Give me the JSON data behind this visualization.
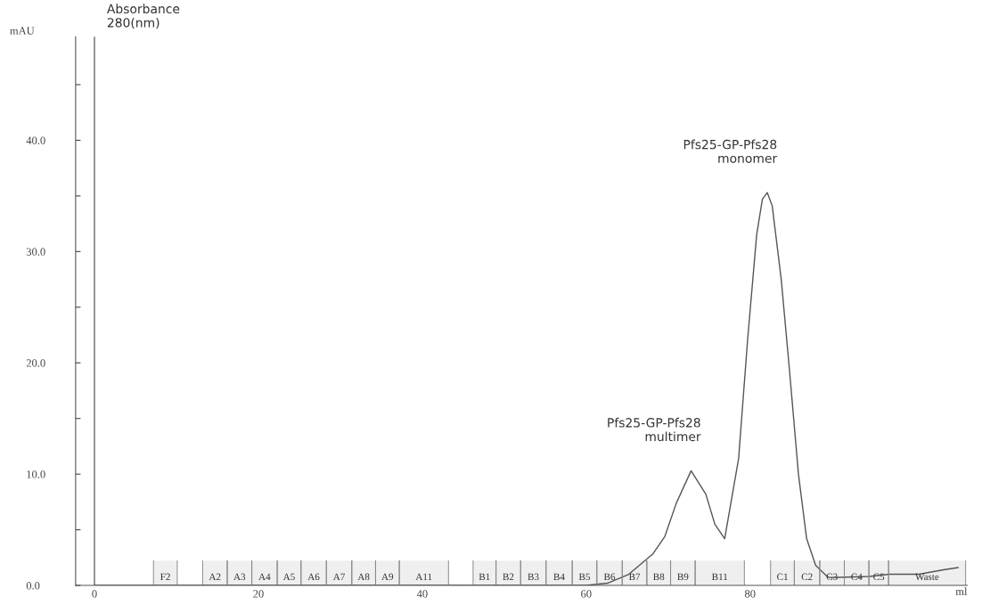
{
  "chart_data": {
    "type": "line",
    "xlabel": "ml",
    "ylabel": "mAU",
    "x": [
      0,
      30,
      60,
      62.6,
      65.2,
      68.1,
      69.6,
      71.0,
      72.8,
      74.6,
      75.7,
      76.9,
      78.6,
      79.7,
      80.8,
      81.5,
      82.1,
      82.7,
      83.8,
      84.8,
      85.9,
      86.9,
      88.0,
      89.4,
      89.8,
      94.5,
      97.0,
      100.6,
      103.6,
      105.4
    ],
    "series": [
      {
        "color": "#555555",
        "values": [
          0,
          0,
          0,
          0.2,
          1.0,
          2.8,
          4.4,
          7.4,
          10.3,
          8.2,
          5.5,
          4.2,
          11.4,
          22.1,
          31.5,
          34.7,
          35.3,
          34.1,
          27.5,
          19.4,
          10.0,
          4.2,
          1.8,
          0.8,
          0.7,
          0.8,
          1.0,
          1.0,
          1.4,
          1.6
        ]
      }
    ],
    "xlim": [
      -2.3,
      106.5
    ],
    "ylim": [
      0,
      49.3
    ],
    "xticks": [
      0,
      20,
      40,
      60,
      80
    ],
    "bands": [
      {
        "axis": "x",
        "from": 7.2,
        "to": 10.1,
        "label": "F2"
      },
      {
        "axis": "x",
        "from": 13.2,
        "to": 16.2,
        "label": "A2"
      },
      {
        "axis": "x",
        "from": 16.2,
        "to": 19.2,
        "label": "A3"
      },
      {
        "axis": "x",
        "from": 19.2,
        "to": 22.3,
        "label": "A4"
      },
      {
        "axis": "x",
        "from": 22.3,
        "to": 25.2,
        "label": "A5"
      },
      {
        "axis": "x",
        "from": 25.2,
        "to": 28.3,
        "label": "A6"
      },
      {
        "axis": "x",
        "from": 28.3,
        "to": 31.4,
        "label": "A7"
      },
      {
        "axis": "x",
        "from": 31.4,
        "to": 34.3,
        "label": "A8"
      },
      {
        "axis": "x",
        "from": 34.3,
        "to": 37.2,
        "label": "A9"
      },
      {
        "axis": "x",
        "from": 37.2,
        "to": 43.2,
        "label": "A11"
      },
      {
        "axis": "x",
        "from": 46.2,
        "to": 49.0,
        "label": "B1"
      },
      {
        "axis": "x",
        "from": 49.0,
        "to": 52.0,
        "label": "B2"
      },
      {
        "axis": "x",
        "from": 52.0,
        "to": 55.1,
        "label": "B3"
      },
      {
        "axis": "x",
        "from": 55.1,
        "to": 58.3,
        "label": "B4"
      },
      {
        "axis": "x",
        "from": 58.3,
        "to": 61.3,
        "label": "B5"
      },
      {
        "axis": "x",
        "from": 61.3,
        "to": 64.4,
        "label": "B6"
      },
      {
        "axis": "x",
        "from": 64.4,
        "to": 67.4,
        "label": "B7"
      },
      {
        "axis": "x",
        "from": 67.4,
        "to": 70.3,
        "label": "B8"
      },
      {
        "axis": "x",
        "from": 70.3,
        "to": 73.3,
        "label": "B9"
      },
      {
        "axis": "x",
        "from": 73.3,
        "to": 79.3,
        "label": "B11"
      },
      {
        "axis": "x",
        "from": 82.5,
        "to": 85.4,
        "label": "C1"
      },
      {
        "axis": "x",
        "from": 85.4,
        "to": 88.5,
        "label": "C2"
      },
      {
        "axis": "x",
        "from": 88.5,
        "to": 91.5,
        "label": "C3"
      },
      {
        "axis": "x",
        "from": 91.5,
        "to": 94.5,
        "label": "C4"
      },
      {
        "axis": "x",
        "from": 94.5,
        "to": 96.9,
        "label": "C5"
      },
      {
        "axis": "x",
        "from": 96.9,
        "to": 106.3,
        "label": "Waste"
      }
    ],
    "yticks": [
      {
        "value": 0,
        "label": "0.0"
      },
      {
        "value": 5,
        "label": null
      },
      {
        "value": 10,
        "label": "10.0"
      },
      {
        "value": 15,
        "label": null
      },
      {
        "value": 20,
        "label": "20.0"
      },
      {
        "value": 25,
        "label": null
      },
      {
        "value": 30,
        "label": "30.0"
      },
      {
        "value": 35,
        "label": null
      },
      {
        "value": 40,
        "label": "40.0"
      },
      {
        "value": 45,
        "label": null
      }
    ],
    "grid": false,
    "legend": false,
    "marker": "none",
    "line_style": "solid",
    "ref_lines": [
      {
        "axis": "x",
        "value": 0,
        "color": "#666666"
      }
    ],
    "annotations": [
      "Absorbance\n280(nm)",
      {
        "text": "Pfs25-GP-Pfs28\nmultimer",
        "x": 72.8,
        "y": 10.3
      },
      {
        "text": "Pfs25-GP-Pfs28\nmonomer",
        "x": 82.1,
        "y": 35.3
      }
    ]
  }
}
